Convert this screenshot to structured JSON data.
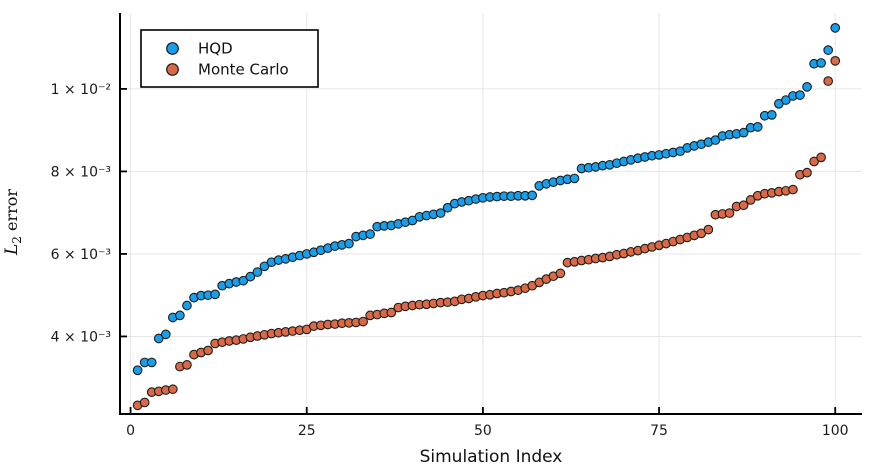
{
  "chart_data": {
    "type": "scatter",
    "title": "",
    "xlabel": "Simulation Index",
    "ylabel": "L2 error",
    "ylabel_parts": {
      "var": "L",
      "sub": "2",
      "rest": " error"
    },
    "grid": true,
    "plot_bg": "#ffffff",
    "xlim": [
      -1.5,
      103.8
    ],
    "ylim": [
      0.00212,
      0.01184
    ],
    "xticks": [
      {
        "v": 0,
        "label": "0"
      },
      {
        "v": 25,
        "label": "25"
      },
      {
        "v": 50,
        "label": "50"
      },
      {
        "v": 75,
        "label": "75"
      },
      {
        "v": 100,
        "label": "100"
      }
    ],
    "yticks": [
      {
        "v": 0.004,
        "label": "4 × 10⁻³"
      },
      {
        "v": 0.006,
        "label": "6 × 10⁻³"
      },
      {
        "v": 0.008,
        "label": "8 × 10⁻³"
      },
      {
        "v": 0.01,
        "label": "1 × 10⁻²"
      }
    ],
    "legend": {
      "position": "top-left"
    },
    "x": [
      1,
      2,
      3,
      4,
      5,
      6,
      7,
      8,
      9,
      10,
      11,
      12,
      13,
      14,
      15,
      16,
      17,
      18,
      19,
      20,
      21,
      22,
      23,
      24,
      25,
      26,
      27,
      28,
      29,
      30,
      31,
      32,
      33,
      34,
      35,
      36,
      37,
      38,
      39,
      40,
      41,
      42,
      43,
      44,
      45,
      46,
      47,
      48,
      49,
      50,
      51,
      52,
      53,
      54,
      55,
      56,
      57,
      58,
      59,
      60,
      61,
      62,
      63,
      64,
      65,
      66,
      67,
      68,
      69,
      70,
      71,
      72,
      73,
      74,
      75,
      76,
      77,
      78,
      79,
      80,
      81,
      82,
      83,
      84,
      85,
      86,
      87,
      88,
      89,
      90,
      91,
      92,
      93,
      94,
      95,
      96,
      97,
      98,
      99,
      100
    ],
    "series": [
      {
        "name": "HQD",
        "color": "#179FEB",
        "marker_stroke": "#1b1b1b",
        "values": [
          0.00318,
          0.00337,
          0.00337,
          0.00395,
          0.00405,
          0.00446,
          0.00451,
          0.00475,
          0.00494,
          0.00499,
          0.005,
          0.00502,
          0.00523,
          0.00528,
          0.00532,
          0.00535,
          0.00545,
          0.00556,
          0.0057,
          0.0058,
          0.00585,
          0.00588,
          0.00592,
          0.00596,
          0.006,
          0.00604,
          0.00609,
          0.00614,
          0.00619,
          0.00622,
          0.00625,
          0.00642,
          0.00645,
          0.00648,
          0.00666,
          0.00668,
          0.00669,
          0.00673,
          0.00677,
          0.00681,
          0.0069,
          0.00693,
          0.00696,
          0.00699,
          0.00712,
          0.00722,
          0.00726,
          0.00729,
          0.00733,
          0.00736,
          0.00738,
          0.00739,
          0.0074,
          0.0074,
          0.00741,
          0.00741,
          0.00742,
          0.00765,
          0.0077,
          0.00774,
          0.00778,
          0.00781,
          0.00783,
          0.00807,
          0.00809,
          0.00811,
          0.00814,
          0.00816,
          0.0082,
          0.00824,
          0.00828,
          0.00832,
          0.00835,
          0.00838,
          0.0084,
          0.00843,
          0.00846,
          0.00849,
          0.00857,
          0.00862,
          0.00866,
          0.00871,
          0.00876,
          0.00886,
          0.00889,
          0.00891,
          0.00894,
          0.00906,
          0.00908,
          0.00935,
          0.00937,
          0.00964,
          0.00973,
          0.00983,
          0.00985,
          0.01005,
          0.01061,
          0.01063,
          0.01094,
          0.01148
        ]
      },
      {
        "name": "Monte Carlo",
        "color": "#D96A45",
        "marker_stroke": "#1b1b1b",
        "values": [
          0.00233,
          0.0024,
          0.00265,
          0.00267,
          0.0027,
          0.00272,
          0.00327,
          0.00331,
          0.00356,
          0.00361,
          0.00366,
          0.00383,
          0.00386,
          0.00389,
          0.00391,
          0.00394,
          0.00398,
          0.00401,
          0.00404,
          0.00407,
          0.00409,
          0.00411,
          0.00413,
          0.00415,
          0.00417,
          0.00425,
          0.00427,
          0.00429,
          0.0043,
          0.00432,
          0.00433,
          0.00434,
          0.00436,
          0.00451,
          0.00453,
          0.00456,
          0.00458,
          0.0047,
          0.00473,
          0.00475,
          0.00477,
          0.00478,
          0.0048,
          0.00482,
          0.00483,
          0.00485,
          0.0049,
          0.00492,
          0.00496,
          0.00499,
          0.00501,
          0.00504,
          0.00506,
          0.00509,
          0.00512,
          0.00517,
          0.00523,
          0.00531,
          0.00539,
          0.00546,
          0.00553,
          0.00579,
          0.00581,
          0.00584,
          0.00586,
          0.00589,
          0.00591,
          0.00594,
          0.00598,
          0.00601,
          0.00605,
          0.00608,
          0.00613,
          0.00617,
          0.00621,
          0.00625,
          0.0063,
          0.00635,
          0.0064,
          0.00645,
          0.0065,
          0.00659,
          0.00695,
          0.00697,
          0.00699,
          0.00715,
          0.00718,
          0.00731,
          0.00741,
          0.00746,
          0.00748,
          0.00751,
          0.00753,
          0.00756,
          0.00792,
          0.00797,
          0.00824,
          0.00834,
          0.01019,
          0.01068
        ]
      }
    ]
  }
}
